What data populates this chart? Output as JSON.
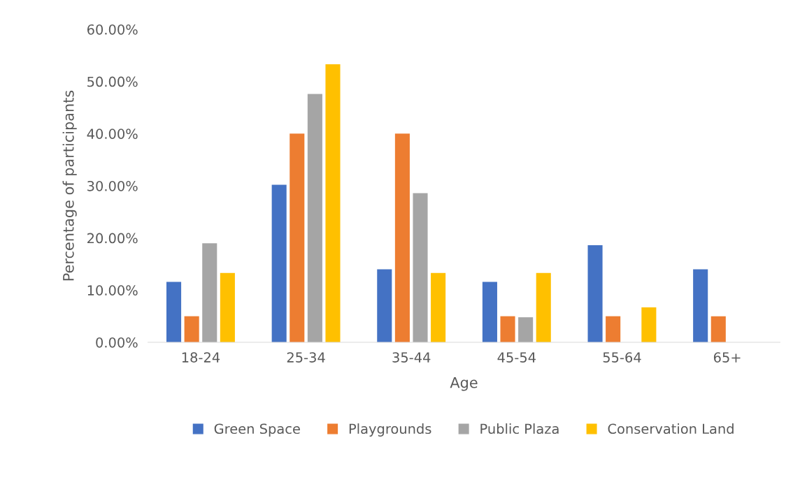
{
  "chart_data": {
    "type": "bar",
    "xlabel": "Age",
    "ylabel": "Percentage of participants",
    "categories": [
      "18-24",
      "25-34",
      "35-44",
      "45-54",
      "55-64",
      "65+"
    ],
    "series": [
      {
        "name": "Green Space",
        "color": "#4472c4",
        "values": [
          11.6,
          30.2,
          14.0,
          11.6,
          18.6,
          14.0
        ]
      },
      {
        "name": "Playgrounds",
        "color": "#ed7d31",
        "values": [
          5.0,
          40.0,
          40.0,
          5.0,
          5.0,
          5.0
        ]
      },
      {
        "name": "Public Plaza",
        "color": "#a5a5a5",
        "values": [
          19.0,
          47.6,
          28.6,
          4.8,
          0,
          0
        ]
      },
      {
        "name": "Conservation Land",
        "color": "#ffc000",
        "values": [
          13.3,
          53.3,
          13.3,
          13.3,
          6.7,
          0
        ]
      }
    ],
    "ylim": [
      0,
      60
    ],
    "yticks": [
      {
        "value": 0,
        "label": "0.00%"
      },
      {
        "value": 10,
        "label": "10.00%"
      },
      {
        "value": 20,
        "label": "20.00%"
      },
      {
        "value": 30,
        "label": "30.00%"
      },
      {
        "value": 40,
        "label": "40.00%"
      },
      {
        "value": 50,
        "label": "50.00%"
      },
      {
        "value": 60,
        "label": "60.00%"
      }
    ],
    "grid": false,
    "legend": "bottom"
  }
}
